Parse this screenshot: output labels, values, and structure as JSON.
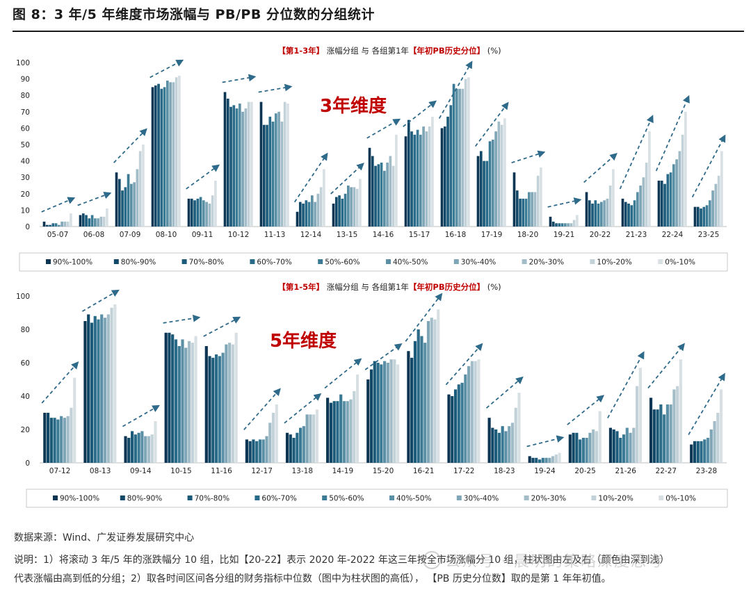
{
  "figure_title": "图 8：3 年/5 年维度市场涨幅与 PB/PB 分位数的分组统计",
  "legend_labels": [
    "90%-100%",
    "80%-90%",
    "70%-80%",
    "60%-70%",
    "50%-60%",
    "40%-50%",
    "30%-40%",
    "20%-30%",
    "10%-20%",
    "0%-10%"
  ],
  "series_colors": [
    "#0c3553",
    "#124867",
    "#1b5a78",
    "#286a87",
    "#3a7a94",
    "#5a8fa6",
    "#7fa6b7",
    "#a2bcc8",
    "#c3d2d9",
    "#d8e0e4"
  ],
  "chart_data": [
    {
      "type": "bar",
      "title_parts": [
        {
          "text": "【第1-3年】",
          "color": "#c00000"
        },
        {
          "text": " 涨幅分组 与 各组第1年",
          "color": "#222222"
        },
        {
          "text": "【年初PB历史分位】",
          "color": "#c00000"
        },
        {
          "text": " (%)",
          "color": "#222222"
        }
      ],
      "big_label": "3年维度",
      "ylim": [
        0,
        100
      ],
      "yticks": [
        0,
        10,
        20,
        30,
        40,
        50,
        60,
        70,
        80,
        90,
        100
      ],
      "categories": [
        "05-07",
        "06-08",
        "07-09",
        "08-10",
        "09-11",
        "10-12",
        "11-13",
        "12-14",
        "13-15",
        "14-16",
        "15-17",
        "16-18",
        "17-19",
        "18-20",
        "19-21",
        "20-22",
        "21-23",
        "22-24",
        "23-25"
      ],
      "values_by_category": [
        [
          3,
          1,
          1,
          2,
          2,
          1,
          3,
          3,
          3,
          8
        ],
        [
          7,
          8,
          7,
          5,
          7,
          5,
          5,
          6,
          6,
          11
        ],
        [
          33,
          29,
          22,
          24,
          32,
          26,
          27,
          35,
          46,
          50
        ],
        [
          85,
          86,
          87,
          84,
          85,
          89,
          88,
          88,
          91,
          92
        ],
        [
          17,
          17,
          16,
          17,
          18,
          16,
          15,
          14,
          19,
          28
        ],
        [
          82,
          78,
          73,
          74,
          72,
          75,
          70,
          72,
          76,
          76
        ],
        [
          76,
          62,
          62,
          67,
          64,
          69,
          70,
          64,
          76,
          75
        ],
        [
          9,
          15,
          14,
          16,
          15,
          19,
          15,
          20,
          24,
          35
        ],
        [
          14,
          18,
          19,
          17,
          20,
          25,
          24,
          24,
          23,
          29
        ],
        [
          48,
          43,
          37,
          38,
          39,
          34,
          39,
          43,
          37,
          56
        ],
        [
          55,
          65,
          58,
          56,
          59,
          56,
          61,
          58,
          61,
          67
        ],
        [
          60,
          61,
          67,
          74,
          87,
          84,
          84,
          84,
          90,
          91
        ],
        [
          43,
          46,
          40,
          40,
          52,
          53,
          58,
          64,
          62,
          66
        ],
        [
          33,
          22,
          17,
          17,
          17,
          21,
          21,
          21,
          31,
          36
        ],
        [
          6,
          3,
          2,
          2,
          2,
          2,
          2,
          2,
          4,
          7
        ],
        [
          21,
          16,
          14,
          16,
          14,
          15,
          16,
          17,
          25,
          35
        ],
        [
          17,
          15,
          14,
          13,
          16,
          21,
          25,
          30,
          39,
          58
        ],
        [
          28,
          28,
          26,
          32,
          33,
          38,
          41,
          46,
          56,
          70
        ],
        [
          12,
          12,
          11,
          12,
          13,
          16,
          22,
          26,
          31,
          46
        ]
      ]
    },
    {
      "type": "bar",
      "title_parts": [
        {
          "text": "【第1-5年】",
          "color": "#c00000"
        },
        {
          "text": " 涨幅分组 与 各组第1年",
          "color": "#222222"
        },
        {
          "text": "【年初PB历史分位】",
          "color": "#c00000"
        },
        {
          "text": " (%)",
          "color": "#222222"
        }
      ],
      "big_label": "5年维度",
      "ylim": [
        0,
        100
      ],
      "yticks": [
        0,
        20,
        40,
        60,
        80,
        100
      ],
      "categories": [
        "07-12",
        "08-13",
        "09-14",
        "10-15",
        "11-16",
        "12-17",
        "13-18",
        "14-19",
        "15-20",
        "16-21",
        "17-22",
        "18-23",
        "19-24",
        "20-25",
        "21-26",
        "22-27",
        "23-28"
      ],
      "values_by_category": [
        [
          30,
          30,
          27,
          27,
          26,
          28,
          27,
          28,
          33,
          51
        ],
        [
          85,
          89,
          84,
          88,
          86,
          89,
          87,
          89,
          93,
          95
        ],
        [
          16,
          15,
          19,
          17,
          18,
          19,
          16,
          16,
          17,
          25
        ],
        [
          78,
          78,
          77,
          74,
          70,
          74,
          69,
          73,
          72,
          76
        ],
        [
          70,
          64,
          63,
          65,
          64,
          66,
          71,
          72,
          71,
          78
        ],
        [
          14,
          13,
          14,
          13,
          14,
          14,
          16,
          24,
          30,
          35
        ],
        [
          18,
          17,
          15,
          18,
          21,
          22,
          29,
          29,
          29,
          32
        ],
        [
          39,
          36,
          37,
          37,
          41,
          37,
          37,
          38,
          43,
          53
        ],
        [
          50,
          56,
          61,
          60,
          59,
          61,
          60,
          62,
          62,
          59
        ],
        [
          67,
          63,
          73,
          80,
          76,
          72,
          85,
          87,
          86,
          92
        ],
        [
          41,
          40,
          44,
          47,
          48,
          53,
          58,
          61,
          61,
          62
        ],
        [
          27,
          21,
          20,
          18,
          22,
          19,
          22,
          24,
          33,
          42
        ],
        [
          4,
          3,
          3,
          2,
          3,
          3,
          3,
          4,
          5,
          6
        ],
        [
          17,
          18,
          18,
          14,
          15,
          15,
          18,
          20,
          19,
          31
        ],
        [
          21,
          20,
          19,
          15,
          17,
          21,
          18,
          21,
          46,
          57
        ],
        [
          39,
          32,
          32,
          35,
          29,
          35,
          35,
          44,
          46,
          62
        ],
        [
          11,
          13,
          13,
          13,
          14,
          15,
          20,
          25,
          30,
          44
        ]
      ]
    }
  ],
  "notes": {
    "source": "数据来源：Wind、广发证券发展研究中心",
    "line1": "说明：1）将滚动 3 年/5 年的涨跌幅分 10 组，比如【20-22】表示 2020 年-2022 年这三年按全市场涨幅分 10 组，柱状图由左及右（颜色由深到浅）",
    "line2": "代表涨幅由高到低的分组；2）取各时间区间各分组的财务指标中位数（图中为柱状图的高低），   【PB 历史分位数】取的是第 1 年年初值。"
  },
  "watermark": "公众号 · 晨明的策略深度思考"
}
